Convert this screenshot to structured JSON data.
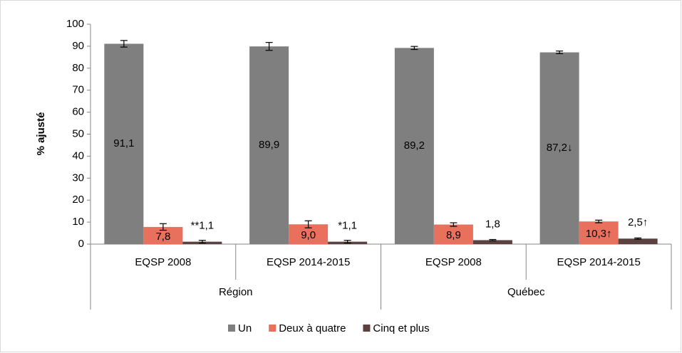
{
  "chart_data": {
    "type": "bar",
    "y_label": "% ajusté",
    "categories": [
      "EQSP 2008",
      "EQSP 2014-2015",
      "EQSP 2008",
      "EQSP 2014-2015"
    ],
    "groups": [
      "Région",
      "Québec"
    ],
    "ylim": [
      0,
      100
    ],
    "yticks": [
      0,
      10,
      20,
      30,
      40,
      50,
      60,
      70,
      80,
      90,
      100
    ],
    "series": [
      {
        "name": "Un",
        "color": "#7f7f7f",
        "values": [
          91.1,
          89.9,
          89.2,
          87.2
        ],
        "errors": [
          1.5,
          1.8,
          0.7,
          0.6
        ],
        "value_labels": [
          "91,1",
          "89,9",
          "89,2",
          "87,2↓"
        ]
      },
      {
        "name": "Deux à quatre",
        "color": "#e8705c",
        "values": [
          7.8,
          9.0,
          8.9,
          10.3
        ],
        "errors": [
          1.5,
          1.6,
          0.8,
          0.6
        ],
        "value_labels": [
          "7,8",
          "9,0",
          "8,9",
          "10,3↑"
        ]
      },
      {
        "name": "Cinq et plus",
        "color": "#5b4241",
        "values": [
          1.1,
          1.1,
          1.8,
          2.5
        ],
        "errors": [
          0.6,
          0.6,
          0.3,
          0.3
        ],
        "value_labels": [
          "**1,1",
          "*1,1",
          "1,8",
          "2,5↑"
        ]
      }
    ]
  }
}
